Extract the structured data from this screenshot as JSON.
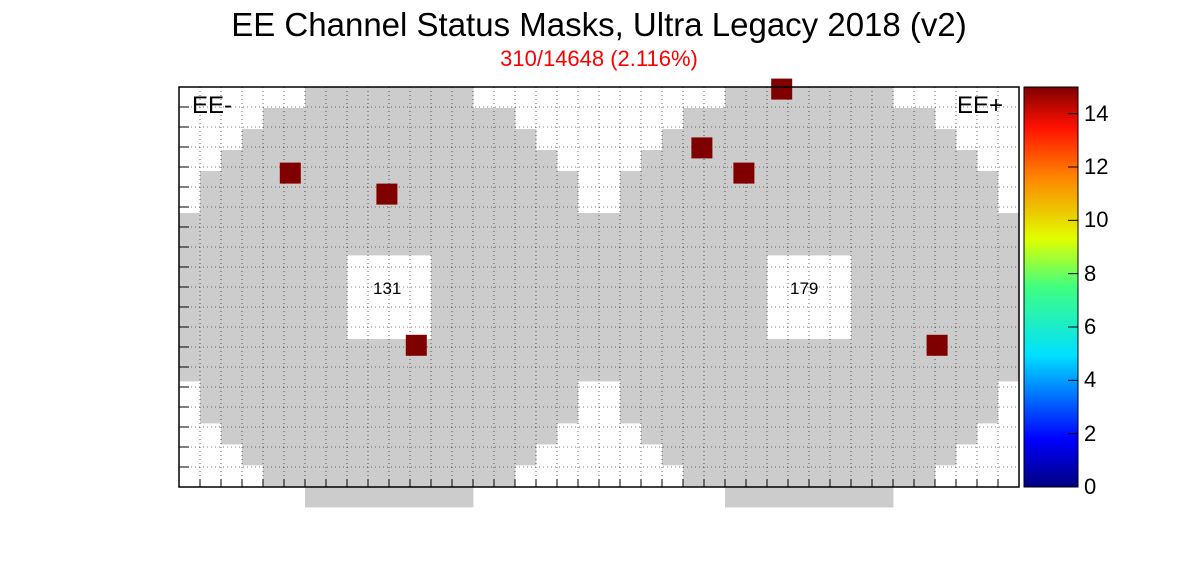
{
  "chart_data": {
    "type": "heatmap",
    "title": "EE Channel Status Masks, Ultra Legacy 2018 (v2)",
    "subtitle": "310/14648 (2.116%)",
    "panels": [
      {
        "name": "EE-",
        "inner_label": "131"
      },
      {
        "name": "EE+",
        "inner_label": "179"
      }
    ],
    "colorbar": {
      "min": 0,
      "max": 15,
      "ticks": [
        "0",
        "2",
        "4",
        "6",
        "8",
        "10",
        "12",
        "14"
      ]
    },
    "grid": true,
    "colors": {
      "detector_fill": "#cccccc",
      "masked": "#800000",
      "title_color": "#ff0000"
    },
    "masked_towers": [
      {
        "side": "EE-",
        "x": 55,
        "y": 37,
        "value": 15
      },
      {
        "side": "EE-",
        "x": 25,
        "y": 78,
        "value": 15
      },
      {
        "side": "EE-",
        "x": 48,
        "y": 73,
        "value": 15
      },
      {
        "side": "EE+",
        "x": 79,
        "y": 37,
        "value": 15
      },
      {
        "side": "EE+",
        "x": 33,
        "y": 78,
        "value": 15
      },
      {
        "side": "EE+",
        "x": 23,
        "y": 84,
        "value": 15
      },
      {
        "side": "EE+",
        "x": 42,
        "y": 98,
        "value": 15
      }
    ]
  }
}
